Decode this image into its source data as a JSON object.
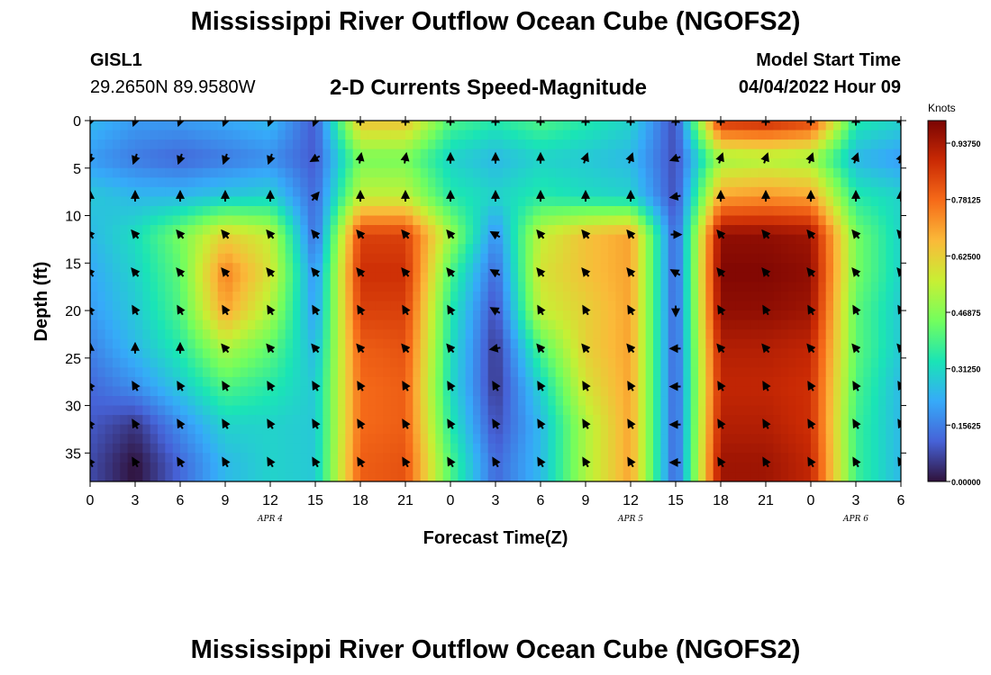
{
  "header": {
    "title": "Mississippi River Outflow Ocean Cube (NGOFS2)",
    "station_id": "GISL1",
    "station_coords": "29.2650N  89.9580W",
    "subtitle": "2-D Currents Speed-Magnitude",
    "model_start_label": "Model Start Time",
    "model_start_value": "04/04/2022 Hour 09"
  },
  "footer": {
    "title": "Mississippi River Outflow Ocean Cube (NGOFS2)"
  },
  "colors": {
    "colormap": [
      "#30123b",
      "#4662d7",
      "#36aaf9",
      "#1ae4b6",
      "#72fe5e",
      "#c8ef34",
      "#faba39",
      "#f66b19",
      "#ca2a04",
      "#7a0403"
    ]
  },
  "chart_data": {
    "type": "heatmap",
    "xlabel": "Forecast Time(Z)",
    "ylabel": "Depth (ft)",
    "x_range": [
      0,
      54
    ],
    "y_range": [
      0,
      38
    ],
    "x_ticks": [
      {
        "hour": 0,
        "label": "0"
      },
      {
        "hour": 3,
        "label": "3"
      },
      {
        "hour": 6,
        "label": "6"
      },
      {
        "hour": 9,
        "label": "9"
      },
      {
        "hour": 12,
        "label": "12"
      },
      {
        "hour": 15,
        "label": "15"
      },
      {
        "hour": 18,
        "label": "18"
      },
      {
        "hour": 21,
        "label": "21"
      },
      {
        "hour": 24,
        "label": "0"
      },
      {
        "hour": 27,
        "label": "3"
      },
      {
        "hour": 30,
        "label": "6"
      },
      {
        "hour": 33,
        "label": "9"
      },
      {
        "hour": 36,
        "label": "12"
      },
      {
        "hour": 39,
        "label": "15"
      },
      {
        "hour": 42,
        "label": "18"
      },
      {
        "hour": 45,
        "label": "21"
      },
      {
        "hour": 48,
        "label": "0"
      },
      {
        "hour": 51,
        "label": "3"
      },
      {
        "hour": 54,
        "label": "6"
      }
    ],
    "y_ticks": [
      0,
      5,
      10,
      15,
      20,
      25,
      30,
      35
    ],
    "date_labels": [
      {
        "hour": 12,
        "label": "APR 4"
      },
      {
        "hour": 36,
        "label": "APR 5"
      },
      {
        "hour": 51,
        "label": "APR 6"
      }
    ],
    "colorbar": {
      "title": "Knots",
      "min": 0,
      "max": 1.0,
      "tick_values": [
        0.0,
        0.15625,
        0.3125,
        0.46875,
        0.625,
        0.78125,
        0.9375
      ],
      "tick_labels": [
        "0.00000",
        "0.15625",
        "0.31250",
        "0.46875",
        "0.62500",
        "0.78125",
        "0.93750"
      ]
    },
    "speed_knots_grid": {
      "hours": [
        0,
        3,
        6,
        9,
        12,
        15,
        18,
        21,
        24,
        27,
        30,
        33,
        36,
        39,
        42,
        45,
        48,
        51,
        54
      ],
      "depths_ft": [
        0,
        4,
        8,
        12,
        16,
        20,
        24,
        28,
        32,
        36
      ],
      "values": [
        [
          0.25,
          0.2,
          0.2,
          0.22,
          0.25,
          0.1,
          0.65,
          0.65,
          0.4,
          0.35,
          0.4,
          0.35,
          0.3,
          0.08,
          0.88,
          0.9,
          0.85,
          0.35,
          0.3
        ],
        [
          0.2,
          0.15,
          0.12,
          0.15,
          0.18,
          0.1,
          0.45,
          0.45,
          0.3,
          0.25,
          0.3,
          0.28,
          0.25,
          0.08,
          0.5,
          0.52,
          0.5,
          0.25,
          0.2
        ],
        [
          0.28,
          0.25,
          0.25,
          0.28,
          0.3,
          0.12,
          0.55,
          0.55,
          0.35,
          0.3,
          0.35,
          0.32,
          0.3,
          0.08,
          0.7,
          0.72,
          0.7,
          0.35,
          0.3
        ],
        [
          0.25,
          0.32,
          0.45,
          0.62,
          0.55,
          0.12,
          0.85,
          0.85,
          0.5,
          0.18,
          0.55,
          0.65,
          0.7,
          0.1,
          0.97,
          0.97,
          0.95,
          0.45,
          0.3
        ],
        [
          0.22,
          0.3,
          0.42,
          0.75,
          0.58,
          0.18,
          0.88,
          0.88,
          0.4,
          0.12,
          0.58,
          0.65,
          0.7,
          0.1,
          0.99,
          0.99,
          0.97,
          0.45,
          0.3
        ],
        [
          0.2,
          0.28,
          0.4,
          0.7,
          0.52,
          0.2,
          0.85,
          0.85,
          0.35,
          0.08,
          0.55,
          0.62,
          0.7,
          0.1,
          0.97,
          0.97,
          0.95,
          0.42,
          0.28
        ],
        [
          0.16,
          0.25,
          0.35,
          0.52,
          0.42,
          0.25,
          0.8,
          0.82,
          0.33,
          0.05,
          0.4,
          0.62,
          0.7,
          0.1,
          0.92,
          0.92,
          0.9,
          0.42,
          0.28
        ],
        [
          0.12,
          0.18,
          0.28,
          0.4,
          0.35,
          0.28,
          0.78,
          0.8,
          0.32,
          0.05,
          0.3,
          0.58,
          0.7,
          0.1,
          0.9,
          0.9,
          0.88,
          0.4,
          0.25
        ],
        [
          0.1,
          0.05,
          0.18,
          0.3,
          0.3,
          0.28,
          0.78,
          0.8,
          0.35,
          0.08,
          0.25,
          0.52,
          0.7,
          0.1,
          0.92,
          0.92,
          0.88,
          0.38,
          0.25
        ],
        [
          0.08,
          0.0,
          0.12,
          0.25,
          0.3,
          0.28,
          0.8,
          0.82,
          0.4,
          0.12,
          0.25,
          0.52,
          0.7,
          0.1,
          0.95,
          0.95,
          0.9,
          0.38,
          0.25
        ]
      ]
    },
    "current_vectors": {
      "hours": [
        0,
        3,
        6,
        9,
        12,
        15,
        18,
        21,
        24,
        27,
        30,
        33,
        36,
        39,
        42,
        45,
        48,
        51,
        54
      ],
      "depths_ft": [
        0,
        4,
        8,
        12,
        16,
        20,
        24,
        28,
        32,
        36
      ],
      "direction_deg": [
        [
          200,
          200,
          200,
          200,
          200,
          200,
          0,
          0,
          0,
          0,
          0,
          0,
          0,
          0,
          0,
          0,
          0,
          0,
          0
        ],
        [
          200,
          200,
          200,
          200,
          200,
          240,
          10,
          10,
          0,
          0,
          0,
          20,
          20,
          250,
          20,
          20,
          20,
          20,
          20
        ],
        [
          0,
          0,
          0,
          0,
          0,
          40,
          0,
          0,
          0,
          0,
          0,
          0,
          0,
          260,
          0,
          0,
          0,
          0,
          0
        ],
        [
          320,
          320,
          320,
          320,
          320,
          320,
          320,
          320,
          320,
          300,
          320,
          320,
          320,
          90,
          320,
          320,
          320,
          320,
          320
        ],
        [
          320,
          320,
          320,
          320,
          320,
          320,
          320,
          320,
          320,
          300,
          320,
          320,
          320,
          300,
          320,
          320,
          320,
          320,
          320
        ],
        [
          330,
          330,
          330,
          330,
          330,
          330,
          330,
          330,
          330,
          300,
          330,
          330,
          330,
          180,
          330,
          330,
          330,
          330,
          330
        ],
        [
          0,
          0,
          0,
          320,
          320,
          320,
          320,
          320,
          320,
          260,
          320,
          320,
          320,
          270,
          320,
          320,
          320,
          320,
          320
        ],
        [
          330,
          330,
          330,
          330,
          330,
          330,
          330,
          330,
          330,
          330,
          330,
          330,
          330,
          270,
          330,
          330,
          330,
          330,
          330
        ],
        [
          330,
          330,
          330,
          330,
          330,
          330,
          330,
          330,
          330,
          330,
          330,
          330,
          330,
          270,
          330,
          330,
          330,
          330,
          330
        ],
        [
          330,
          330,
          330,
          330,
          330,
          330,
          330,
          330,
          330,
          330,
          330,
          330,
          330,
          270,
          330,
          330,
          330,
          330,
          330
        ]
      ]
    }
  }
}
